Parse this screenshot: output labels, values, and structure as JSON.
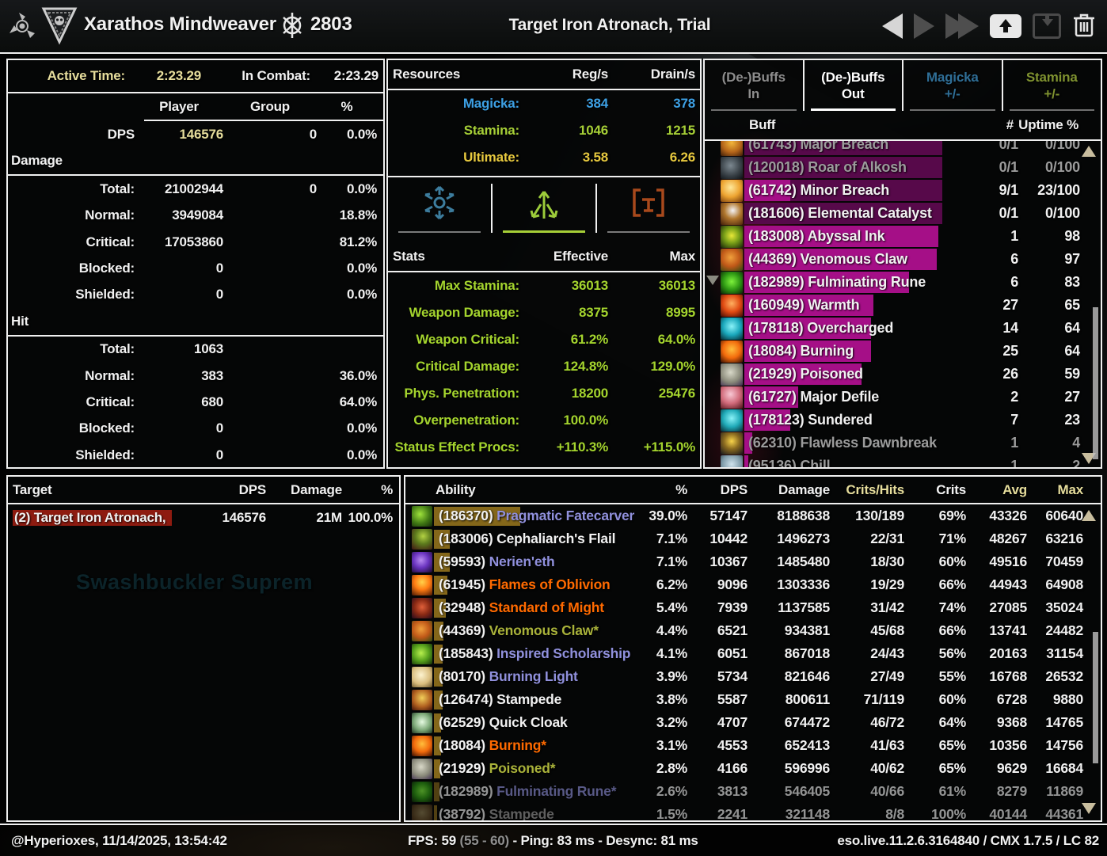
{
  "topbar": {
    "player_name": "Xarathos Mindweaver",
    "score": "2803",
    "title": "Target Iron Atronach, Trial"
  },
  "summary": {
    "active_time_label": "Active Time:",
    "active_time": "2:23.29",
    "in_combat_label": "In Combat:",
    "in_combat": "2:23.29",
    "col_player": "Player",
    "col_group": "Group",
    "col_pct": "%",
    "dps_label": "DPS",
    "dps_player": "146576",
    "dps_group": "0",
    "dps_pct": "0.0%",
    "damage_section": "Damage",
    "damage_rows": [
      {
        "label": "Total:",
        "player": "21002944",
        "group": "0",
        "pct": "0.0%"
      },
      {
        "label": "Normal:",
        "player": "3949084",
        "group": "",
        "pct": "18.8%"
      },
      {
        "label": "Critical:",
        "player": "17053860",
        "group": "",
        "pct": "81.2%"
      },
      {
        "label": "Blocked:",
        "player": "0",
        "group": "",
        "pct": "0.0%"
      },
      {
        "label": "Shielded:",
        "player": "0",
        "group": "",
        "pct": "0.0%"
      }
    ],
    "hit_section": "Hit",
    "hit_rows": [
      {
        "label": "Total:",
        "player": "1063",
        "group": "",
        "pct": ""
      },
      {
        "label": "Normal:",
        "player": "383",
        "group": "",
        "pct": "36.0%"
      },
      {
        "label": "Critical:",
        "player": "680",
        "group": "",
        "pct": "64.0%"
      },
      {
        "label": "Blocked:",
        "player": "0",
        "group": "",
        "pct": "0.0%"
      },
      {
        "label": "Shielded:",
        "player": "0",
        "group": "",
        "pct": "0.0%"
      }
    ]
  },
  "resources": {
    "header": "Resources",
    "reg_header": "Reg/s",
    "drain_header": "Drain/s",
    "rows": [
      {
        "label": "Magicka:",
        "reg": "384",
        "drain": "378",
        "color": "magicka"
      },
      {
        "label": "Stamina:",
        "reg": "1046",
        "drain": "1215",
        "color": "stamina"
      },
      {
        "label": "Ultimate:",
        "reg": "3.58",
        "drain": "6.26",
        "color": "ultimate"
      }
    ]
  },
  "stats": {
    "header": "Stats",
    "effective_header": "Effective",
    "max_header": "Max",
    "rows": [
      {
        "label": "Max Stamina:",
        "effective": "36013",
        "max": "36013"
      },
      {
        "label": "Weapon Damage:",
        "effective": "8375",
        "max": "8995"
      },
      {
        "label": "Weapon Critical:",
        "effective": "61.2%",
        "max": "64.0%"
      },
      {
        "label": "Critical Damage:",
        "effective": "124.8%",
        "max": "129.0%"
      },
      {
        "label": "Phys. Penetration:",
        "effective": "18200",
        "max": "25476"
      },
      {
        "label": "Overpenetration:",
        "effective": "100.0%",
        "max": ""
      },
      {
        "label": "Status Effect Procs:",
        "effective": "+110.3%",
        "max": "+115.0%"
      }
    ]
  },
  "buffs": {
    "tabs": [
      {
        "line1": "(De-)Buffs",
        "line2": "In",
        "state": "in"
      },
      {
        "line1": "(De-)Buffs",
        "line2": "Out",
        "state": "out",
        "active": true
      },
      {
        "line1": "Magicka",
        "line2": "+/-",
        "state": "magicka"
      },
      {
        "line1": "Stamina",
        "line2": "+/-",
        "state": "stamina"
      }
    ],
    "col_buff": "Buff",
    "col_count": "#",
    "col_uptime": "Uptime %",
    "rows": [
      {
        "name": "(61743) Major Breach",
        "count": "0/1",
        "uptime": "0/100",
        "icon": "major-breach",
        "gray": true
      },
      {
        "name": "(120018) Roar of Alkosh",
        "count": "0/1",
        "uptime": "0/100",
        "icon": "alkosh",
        "gray": true
      },
      {
        "name": "(61742) Minor Breach",
        "count": "9/1",
        "uptime": "23/100",
        "icon": "minor-breach"
      },
      {
        "name": "(181606) Elemental Catalyst",
        "count": "0/1",
        "uptime": "0/100",
        "icon": "elemental-catalyst"
      },
      {
        "name": "(183008) Abyssal Ink",
        "count": "1",
        "uptime": "98",
        "icon": "abyssal-ink"
      },
      {
        "name": "(44369) Venomous Claw",
        "count": "6",
        "uptime": "97",
        "icon": "venomous-claw"
      },
      {
        "name": "(182989) Fulminating Rune",
        "count": "6",
        "uptime": "83",
        "icon": "fulminating-rune"
      },
      {
        "name": "(160949) Warmth",
        "count": "27",
        "uptime": "65",
        "icon": "warmth"
      },
      {
        "name": "(178118) Overcharged",
        "count": "14",
        "uptime": "64",
        "icon": "overcharged"
      },
      {
        "name": "(18084) Burning",
        "count": "25",
        "uptime": "64",
        "icon": "burning"
      },
      {
        "name": "(21929) Poisoned",
        "count": "26",
        "uptime": "59",
        "icon": "poisoned"
      },
      {
        "name": "(61727) Major Defile",
        "count": "2",
        "uptime": "27",
        "icon": "major-defile"
      },
      {
        "name": "(178123) Sundered",
        "count": "7",
        "uptime": "23",
        "icon": "sundered"
      },
      {
        "name": "(62310) Flawless Dawnbreak",
        "count": "1",
        "uptime": "4",
        "icon": "dawnbreaker",
        "gray": true
      },
      {
        "name": "(95136) Chill",
        "count": "1",
        "uptime": "2",
        "icon": "chill",
        "gray": true
      }
    ]
  },
  "target_panel": {
    "h_target": "Target",
    "h_dps": "DPS",
    "h_damage": "Damage",
    "h_pct": "%",
    "rows": [
      {
        "name": "(2) Target Iron Atronach,",
        "dps": "146576",
        "damage": "21M",
        "pct": "100.0%"
      }
    ],
    "watermark": "Swashbuckler Suprem"
  },
  "abilities": {
    "h_ability": "Ability",
    "h_pct": "%",
    "h_dps": "DPS",
    "h_damage": "Damage",
    "h_crits_hits": "Crits/Hits",
    "h_crits": "Crits",
    "h_avg": "Avg",
    "h_max": "Max",
    "rows": [
      {
        "prefix": "(186370)",
        "name": "Pragmatic Fatecarver",
        "color": "link",
        "pct": "39.0%",
        "dps": "57147",
        "damage": "8188638",
        "crits_hits": "130/189",
        "crits": "69%",
        "avg": "43326",
        "max": "60640",
        "icon": "fatecarver"
      },
      {
        "prefix": "(183006)",
        "name": "Cephaliarch's Flail",
        "color": "white",
        "pct": "7.1%",
        "dps": "10442",
        "damage": "1496273",
        "crits_hits": "22/31",
        "crits": "71%",
        "avg": "48267",
        "max": "63216",
        "icon": "flail"
      },
      {
        "prefix": "(59593)",
        "name": "Nerien'eth",
        "color": "link",
        "pct": "7.1%",
        "dps": "10367",
        "damage": "1485480",
        "crits_hits": "18/30",
        "crits": "60%",
        "avg": "49516",
        "max": "70459",
        "icon": "nerieneth"
      },
      {
        "prefix": "(61945)",
        "name": "Flames of Oblivion",
        "color": "orange",
        "pct": "6.2%",
        "dps": "9096",
        "damage": "1303336",
        "crits_hits": "19/29",
        "crits": "66%",
        "avg": "44943",
        "max": "64908",
        "icon": "flames"
      },
      {
        "prefix": "(32948)",
        "name": "Standard of Might",
        "color": "orange",
        "pct": "5.4%",
        "dps": "7939",
        "damage": "1137585",
        "crits_hits": "31/42",
        "crits": "74%",
        "avg": "27085",
        "max": "35024",
        "icon": "standard"
      },
      {
        "prefix": "(44369)",
        "name": "Venomous Claw*",
        "color": "olive",
        "pct": "4.4%",
        "dps": "6521",
        "damage": "934381",
        "crits_hits": "45/68",
        "crits": "66%",
        "avg": "13741",
        "max": "24482",
        "icon": "venomous-claw"
      },
      {
        "prefix": "(185843)",
        "name": "Inspired Scholarship",
        "color": "link",
        "pct": "4.1%",
        "dps": "6051",
        "damage": "867018",
        "crits_hits": "24/43",
        "crits": "56%",
        "avg": "20163",
        "max": "31154",
        "icon": "scholarship"
      },
      {
        "prefix": "(80170)",
        "name": "Burning Light",
        "color": "link",
        "pct": "3.9%",
        "dps": "5734",
        "damage": "821646",
        "crits_hits": "27/49",
        "crits": "55%",
        "avg": "16768",
        "max": "26532",
        "icon": "burning-light"
      },
      {
        "prefix": "(126474)",
        "name": "Stampede",
        "color": "white",
        "pct": "3.8%",
        "dps": "5587",
        "damage": "800611",
        "crits_hits": "71/119",
        "crits": "60%",
        "avg": "6728",
        "max": "9880",
        "icon": "stampede"
      },
      {
        "prefix": "(62529)",
        "name": "Quick Cloak",
        "color": "white",
        "pct": "3.2%",
        "dps": "4707",
        "damage": "674472",
        "crits_hits": "46/72",
        "crits": "64%",
        "avg": "9368",
        "max": "14765",
        "icon": "quick-cloak"
      },
      {
        "prefix": "(18084)",
        "name": "Burning*",
        "color": "orange",
        "pct": "3.1%",
        "dps": "4553",
        "damage": "652413",
        "crits_hits": "41/63",
        "crits": "65%",
        "avg": "10356",
        "max": "14756",
        "icon": "burning"
      },
      {
        "prefix": "(21929)",
        "name": "Poisoned*",
        "color": "olive",
        "pct": "2.8%",
        "dps": "4166",
        "damage": "596996",
        "crits_hits": "40/62",
        "crits": "65%",
        "avg": "9629",
        "max": "16684",
        "icon": "poisoned"
      },
      {
        "prefix": "(182989)",
        "name": "Fulminating Rune*",
        "color": "link",
        "pct": "2.6%",
        "dps": "3813",
        "damage": "546405",
        "crits_hits": "40/66",
        "crits": "61%",
        "avg": "8279",
        "max": "11869",
        "icon": "fulminating-rune",
        "faded": true
      },
      {
        "prefix": "(38792)",
        "name": "Stampede",
        "color": "gray",
        "pct": "1.5%",
        "dps": "2241",
        "damage": "321148",
        "crits_hits": "8/8",
        "crits": "100%",
        "avg": "40144",
        "max": "44361",
        "icon": "stampede-dim",
        "faded": true
      }
    ]
  },
  "statusbar": {
    "left": "@Hyperioxes, 11/14/2025, 13:54:42",
    "fps": "FPS: 59",
    "fps_range": "(55 - 60)",
    "ping_desync": "- Ping: 83 ms - Desync: 81 ms",
    "right": "eso.live.11.2.6.3164840 / CMX 1.7.5 / LC 82"
  }
}
